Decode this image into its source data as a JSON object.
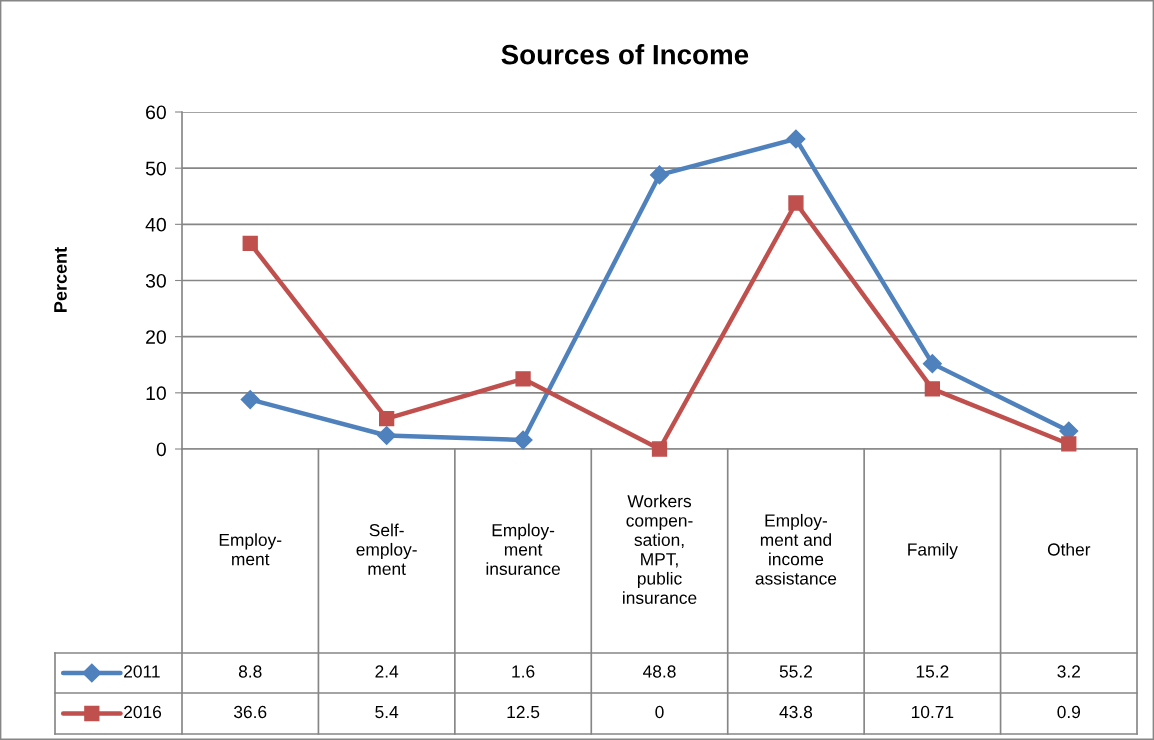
{
  "chart_data": {
    "type": "line",
    "title": "Sources of Income",
    "ylabel": "Percent",
    "categories": [
      "Employ-\nment",
      "Self-\nemploy-\nment",
      "Employ-\nment\ninsurance",
      "Workers\ncompen-\nsation,\nMPT,\npublic\ninsurance",
      "Employ-\nment and\nincome\nassistance",
      "Family",
      "Other"
    ],
    "series": [
      {
        "name": "2011",
        "color": "#4f81bd",
        "marker": "diamond",
        "values": [
          8.8,
          2.4,
          1.6,
          48.8,
          55.2,
          15.2,
          3.2
        ]
      },
      {
        "name": "2016",
        "color": "#c0504d",
        "marker": "square",
        "values": [
          36.6,
          5.4,
          12.5,
          0,
          43.8,
          10.71,
          0.9
        ]
      }
    ],
    "ylim": [
      0,
      60
    ],
    "yticks": [
      0,
      10,
      20,
      30,
      40,
      50,
      60
    ],
    "grid": "y",
    "legend": "bottom left",
    "data_labels": true,
    "line_style": "solid"
  }
}
